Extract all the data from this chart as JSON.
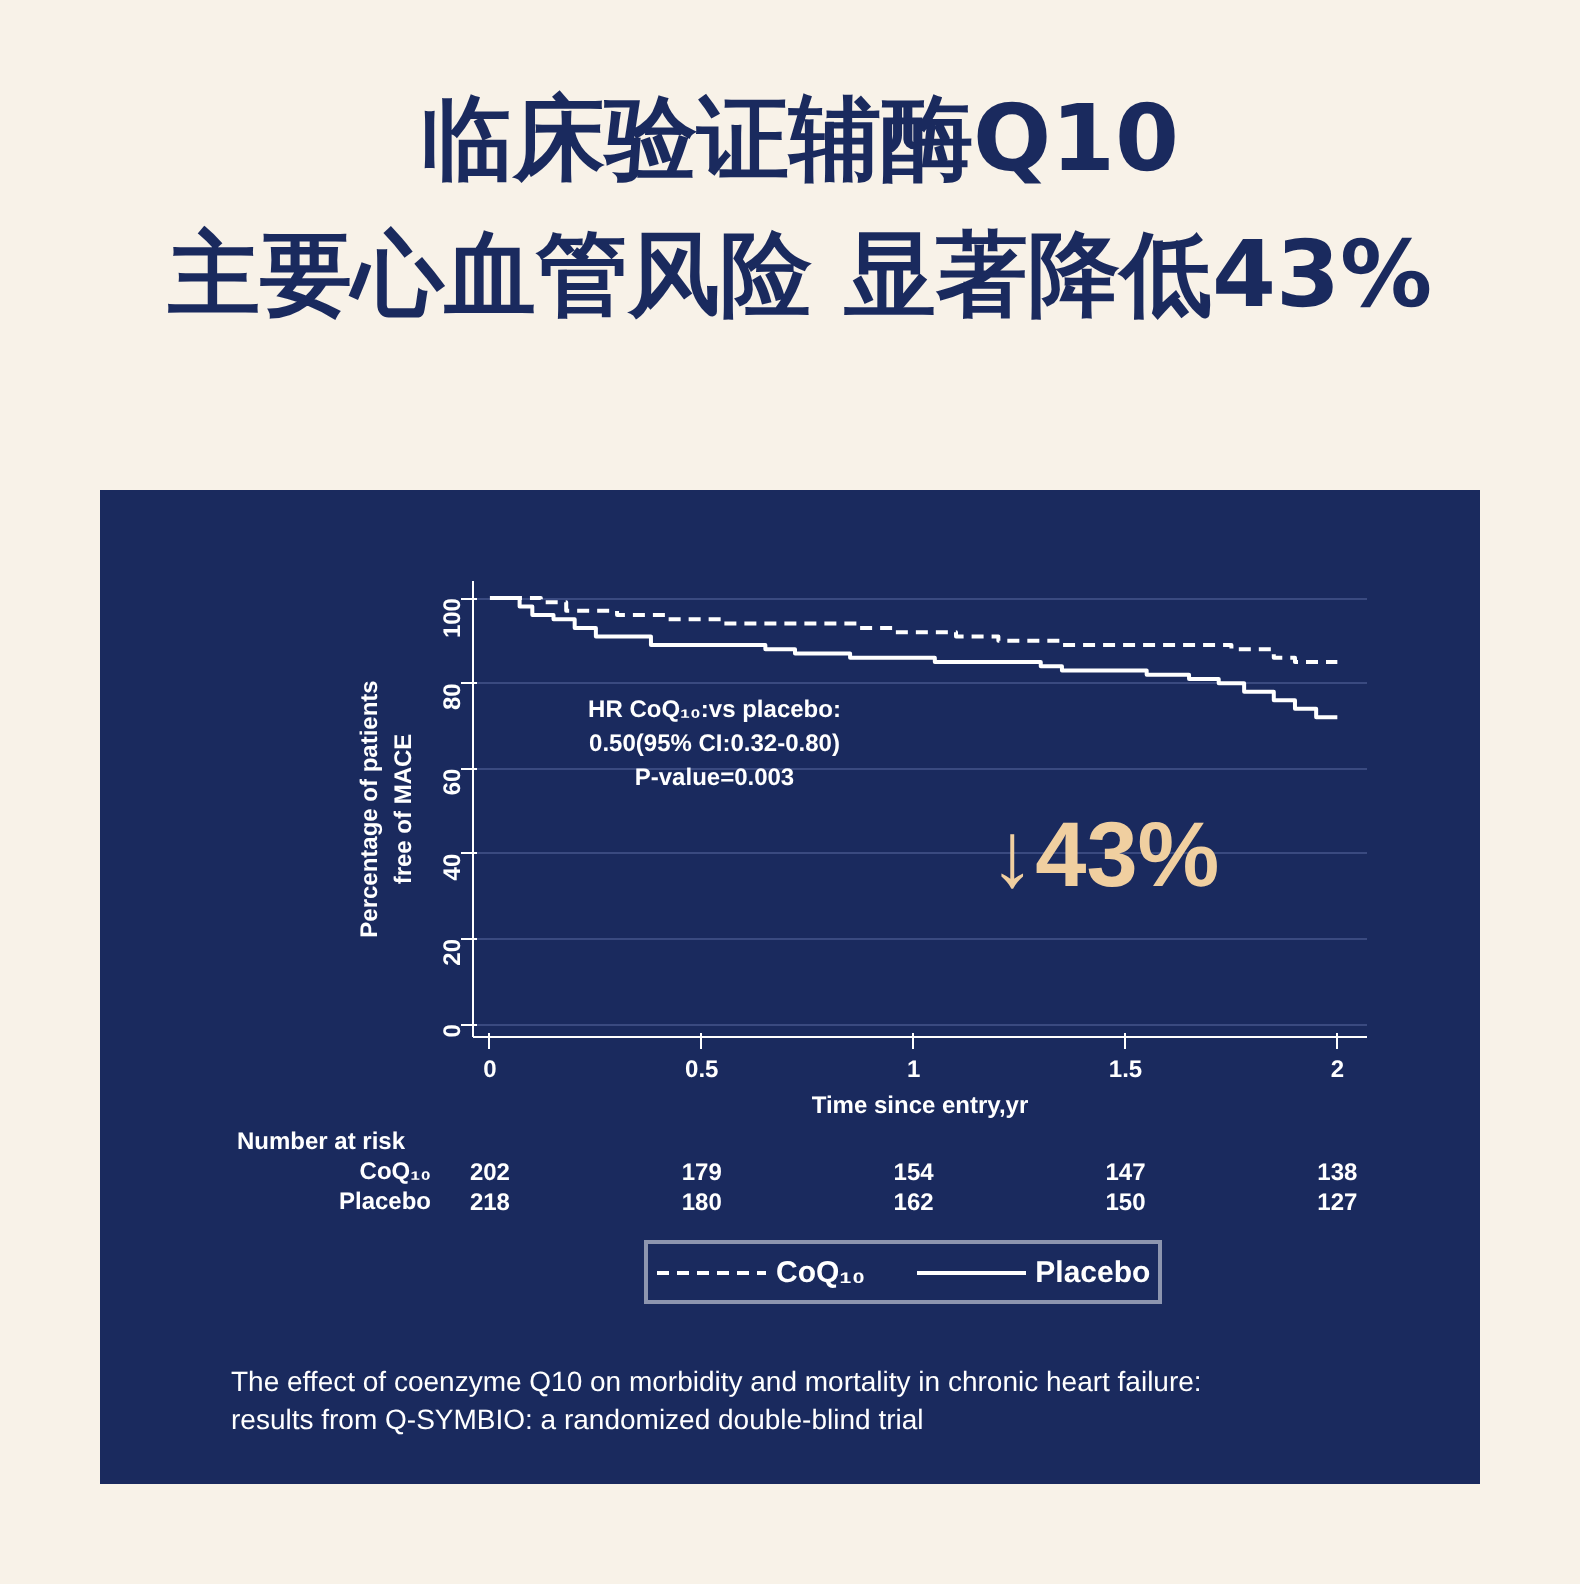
{
  "chart_data": {
    "type": "step",
    "title": "临床验证辅酶Q10\n主要心血管风险 显著降低43%",
    "xlabel": "Time since entry,yr",
    "ylabel": "Percentage of patients\nfree of MACE",
    "series": [
      {
        "name": "CoQ₁₀",
        "color": "#ffffff",
        "line_style": "dashed",
        "x": [
          0,
          0.12,
          0.18,
          0.3,
          0.42,
          0.55,
          0.87,
          0.95,
          1.1,
          1.2,
          1.35,
          1.65,
          1.75,
          1.85,
          1.9,
          2.0
        ],
        "values": [
          100,
          99,
          97,
          96,
          95,
          94,
          93,
          92,
          91,
          90,
          89,
          89,
          88,
          86,
          85,
          85
        ]
      },
      {
        "name": "Placebo",
        "color": "#ffffff",
        "line_style": "solid",
        "x": [
          0,
          0.07,
          0.1,
          0.15,
          0.2,
          0.25,
          0.38,
          0.65,
          0.72,
          0.85,
          1.05,
          1.3,
          1.35,
          1.55,
          1.65,
          1.72,
          1.78,
          1.85,
          1.9,
          1.95,
          2.0
        ],
        "values": [
          100,
          98,
          96,
          95,
          93,
          91,
          89,
          88,
          87,
          86,
          85,
          84,
          83,
          82,
          81,
          80,
          78,
          76,
          74,
          72,
          72
        ]
      }
    ],
    "xlim": [
      -0.04,
      2.07
    ],
    "ylim": [
      -3,
      104
    ],
    "xticks": [
      0,
      0.5,
      1,
      1.5,
      2
    ],
    "yticks": [
      0,
      20,
      40,
      60,
      80,
      100
    ],
    "grid": "y",
    "legend": "bottom",
    "marker": "none",
    "annotations": [
      "HR CoQ₁₀:vs placebo:\n0.50(95% CI:0.32-0.80)\nP-value=0.003",
      "↓43%",
      "Number at risk",
      "CoQ₁₀",
      "202",
      "179",
      "154",
      "147",
      "138",
      "Placebo",
      "218",
      "180",
      "162",
      "150",
      "127",
      "The effect of coenzyme Q10 on morbidity and mortality in chronic heart failure:\nresults from Q-SYMBIO: a randomized double-blind trial"
    ]
  }
}
